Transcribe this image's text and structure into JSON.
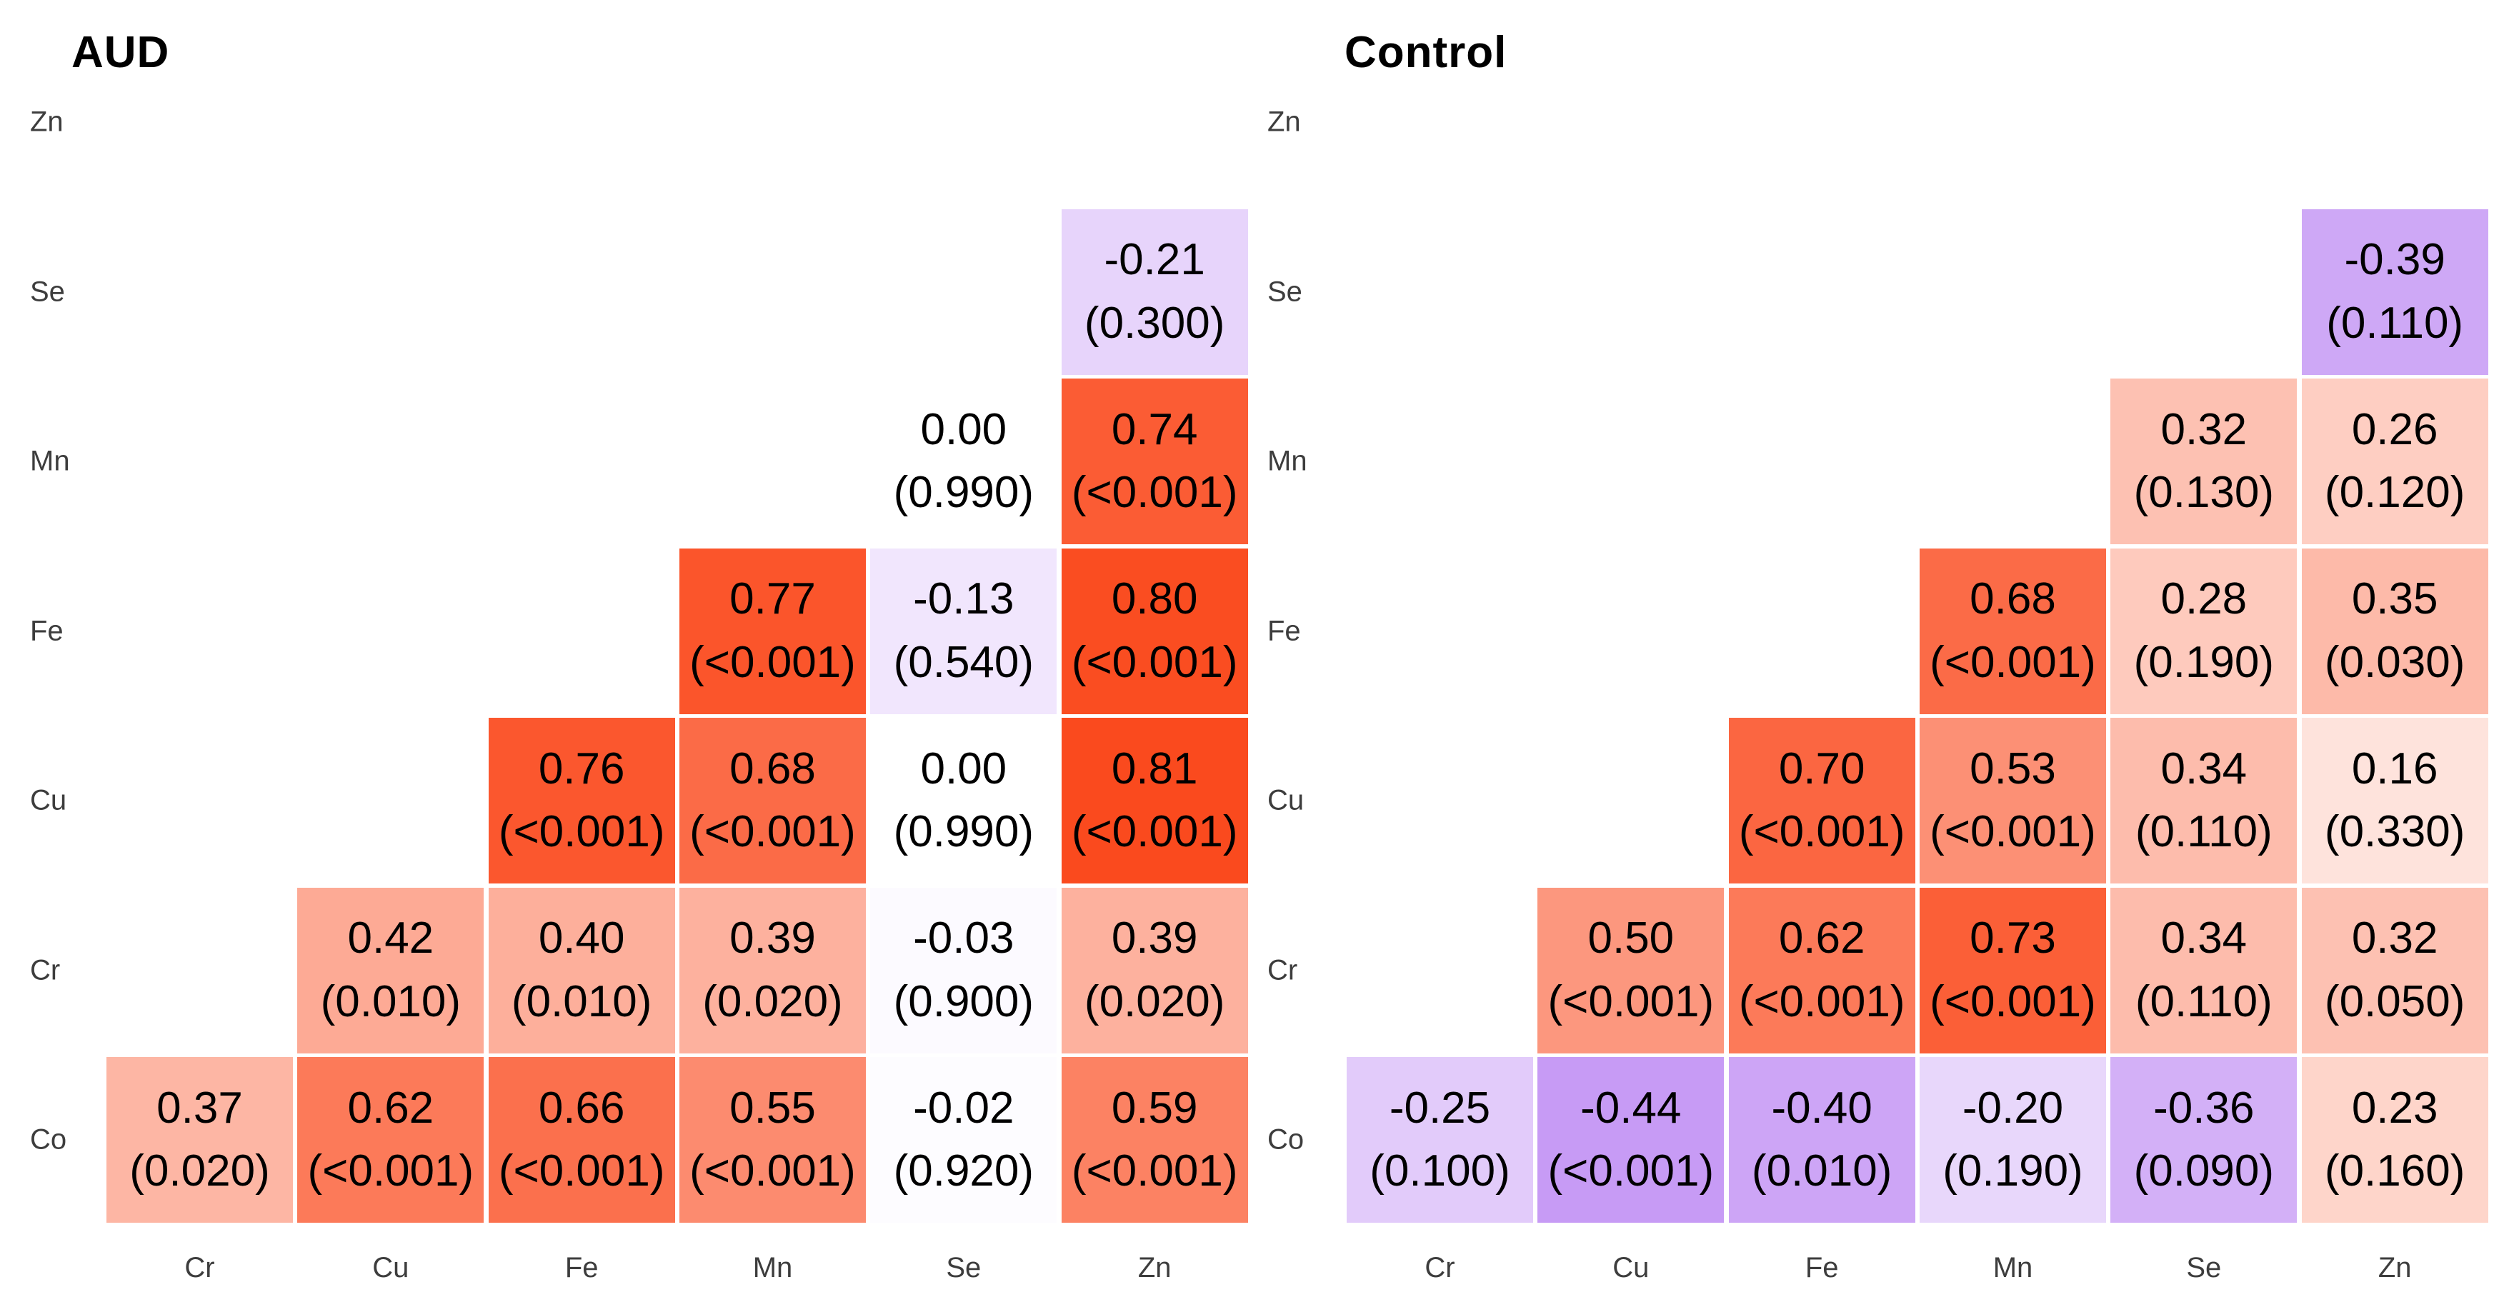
{
  "figure": {
    "background": "#ffffff",
    "description": "Two lower-triangular correlation heatmaps of trace elements; each cell shows correlation coefficient and (p-value)"
  },
  "colorscale": {
    "neutral": "#ffffff",
    "positive_end_rgb": [
      249,
      25,
      -32
    ],
    "negative_end_rgb": [
      111,
      -2,
      229
    ],
    "gamma": 1.15,
    "positive_example_hex": "#fa4a1e",
    "negative_example_hex": "#c79bf5",
    "cell_text_color": "#000000",
    "axis_text_color": "#3d3d3d"
  },
  "chart_data": [
    {
      "type": "heatmap",
      "title": "AUD",
      "x_labels": [
        "Cr",
        "Cu",
        "Fe",
        "Mn",
        "Se",
        "Zn"
      ],
      "y_labels": [
        "Zn",
        "Se",
        "Mn",
        "Fe",
        "Cu",
        "Cr",
        "Co"
      ],
      "legend": "none",
      "grid": "off",
      "value_range": [
        -1,
        1
      ],
      "cells": [
        {
          "row": "Se",
          "col": "Zn",
          "v": -0.21,
          "r": "-0.21",
          "p": "(0.300)"
        },
        {
          "row": "Mn",
          "col": "Se",
          "v": 0.0,
          "r": "0.00",
          "p": "(0.990)"
        },
        {
          "row": "Mn",
          "col": "Zn",
          "v": 0.74,
          "r": "0.74",
          "p": "(<0.001)"
        },
        {
          "row": "Fe",
          "col": "Mn",
          "v": 0.77,
          "r": "0.77",
          "p": "(<0.001)"
        },
        {
          "row": "Fe",
          "col": "Se",
          "v": -0.13,
          "r": "-0.13",
          "p": "(0.540)"
        },
        {
          "row": "Fe",
          "col": "Zn",
          "v": 0.8,
          "r": "0.80",
          "p": "(<0.001)"
        },
        {
          "row": "Cu",
          "col": "Fe",
          "v": 0.76,
          "r": "0.76",
          "p": "(<0.001)"
        },
        {
          "row": "Cu",
          "col": "Mn",
          "v": 0.68,
          "r": "0.68",
          "p": "(<0.001)"
        },
        {
          "row": "Cu",
          "col": "Se",
          "v": 0.0,
          "r": "0.00",
          "p": "(0.990)"
        },
        {
          "row": "Cu",
          "col": "Zn",
          "v": 0.81,
          "r": "0.81",
          "p": "(<0.001)"
        },
        {
          "row": "Cr",
          "col": "Cu",
          "v": 0.42,
          "r": "0.42",
          "p": "(0.010)"
        },
        {
          "row": "Cr",
          "col": "Fe",
          "v": 0.4,
          "r": "0.40",
          "p": "(0.010)"
        },
        {
          "row": "Cr",
          "col": "Mn",
          "v": 0.39,
          "r": "0.39",
          "p": "(0.020)"
        },
        {
          "row": "Cr",
          "col": "Se",
          "v": -0.03,
          "r": "-0.03",
          "p": "(0.900)"
        },
        {
          "row": "Cr",
          "col": "Zn",
          "v": 0.39,
          "r": "0.39",
          "p": "(0.020)"
        },
        {
          "row": "Co",
          "col": "Cr",
          "v": 0.37,
          "r": "0.37",
          "p": "(0.020)"
        },
        {
          "row": "Co",
          "col": "Cu",
          "v": 0.62,
          "r": "0.62",
          "p": "(<0.001)"
        },
        {
          "row": "Co",
          "col": "Fe",
          "v": 0.66,
          "r": "0.66",
          "p": "(<0.001)"
        },
        {
          "row": "Co",
          "col": "Mn",
          "v": 0.55,
          "r": "0.55",
          "p": "(<0.001)"
        },
        {
          "row": "Co",
          "col": "Se",
          "v": -0.02,
          "r": "-0.02",
          "p": "(0.920)"
        },
        {
          "row": "Co",
          "col": "Zn",
          "v": 0.59,
          "r": "0.59",
          "p": "(<0.001)"
        }
      ]
    },
    {
      "type": "heatmap",
      "title": "Control",
      "x_labels": [
        "Cr",
        "Cu",
        "Fe",
        "Mn",
        "Se",
        "Zn"
      ],
      "y_labels": [
        "Zn",
        "Se",
        "Mn",
        "Fe",
        "Cu",
        "Cr",
        "Co"
      ],
      "legend": "none",
      "grid": "off",
      "value_range": [
        -1,
        1
      ],
      "cells": [
        {
          "row": "Se",
          "col": "Zn",
          "v": -0.39,
          "r": "-0.39",
          "p": "(0.110)"
        },
        {
          "row": "Mn",
          "col": "Se",
          "v": 0.32,
          "r": "0.32",
          "p": "(0.130)"
        },
        {
          "row": "Mn",
          "col": "Zn",
          "v": 0.26,
          "r": "0.26",
          "p": "(0.120)"
        },
        {
          "row": "Fe",
          "col": "Mn",
          "v": 0.68,
          "r": "0.68",
          "p": "(<0.001)"
        },
        {
          "row": "Fe",
          "col": "Se",
          "v": 0.28,
          "r": "0.28",
          "p": "(0.190)"
        },
        {
          "row": "Fe",
          "col": "Zn",
          "v": 0.35,
          "r": "0.35",
          "p": "(0.030)"
        },
        {
          "row": "Cu",
          "col": "Fe",
          "v": 0.7,
          "r": "0.70",
          "p": "(<0.001)"
        },
        {
          "row": "Cu",
          "col": "Mn",
          "v": 0.53,
          "r": "0.53",
          "p": "(<0.001)"
        },
        {
          "row": "Cu",
          "col": "Se",
          "v": 0.34,
          "r": "0.34",
          "p": "(0.110)"
        },
        {
          "row": "Cu",
          "col": "Zn",
          "v": 0.16,
          "r": "0.16",
          "p": "(0.330)"
        },
        {
          "row": "Cr",
          "col": "Cu",
          "v": 0.5,
          "r": "0.50",
          "p": "(<0.001)"
        },
        {
          "row": "Cr",
          "col": "Fe",
          "v": 0.62,
          "r": "0.62",
          "p": "(<0.001)"
        },
        {
          "row": "Cr",
          "col": "Mn",
          "v": 0.73,
          "r": "0.73",
          "p": "(<0.001)"
        },
        {
          "row": "Cr",
          "col": "Se",
          "v": 0.34,
          "r": "0.34",
          "p": "(0.110)"
        },
        {
          "row": "Cr",
          "col": "Zn",
          "v": 0.32,
          "r": "0.32",
          "p": "(0.050)"
        },
        {
          "row": "Co",
          "col": "Cr",
          "v": -0.25,
          "r": "-0.25",
          "p": "(0.100)"
        },
        {
          "row": "Co",
          "col": "Cu",
          "v": -0.44,
          "r": "-0.44",
          "p": "(<0.001)"
        },
        {
          "row": "Co",
          "col": "Fe",
          "v": -0.4,
          "r": "-0.40",
          "p": "(0.010)"
        },
        {
          "row": "Co",
          "col": "Mn",
          "v": -0.2,
          "r": "-0.20",
          "p": "(0.190)"
        },
        {
          "row": "Co",
          "col": "Se",
          "v": -0.36,
          "r": "-0.36",
          "p": "(0.090)"
        },
        {
          "row": "Co",
          "col": "Zn",
          "v": 0.23,
          "r": "0.23",
          "p": "(0.160)"
        }
      ]
    }
  ]
}
